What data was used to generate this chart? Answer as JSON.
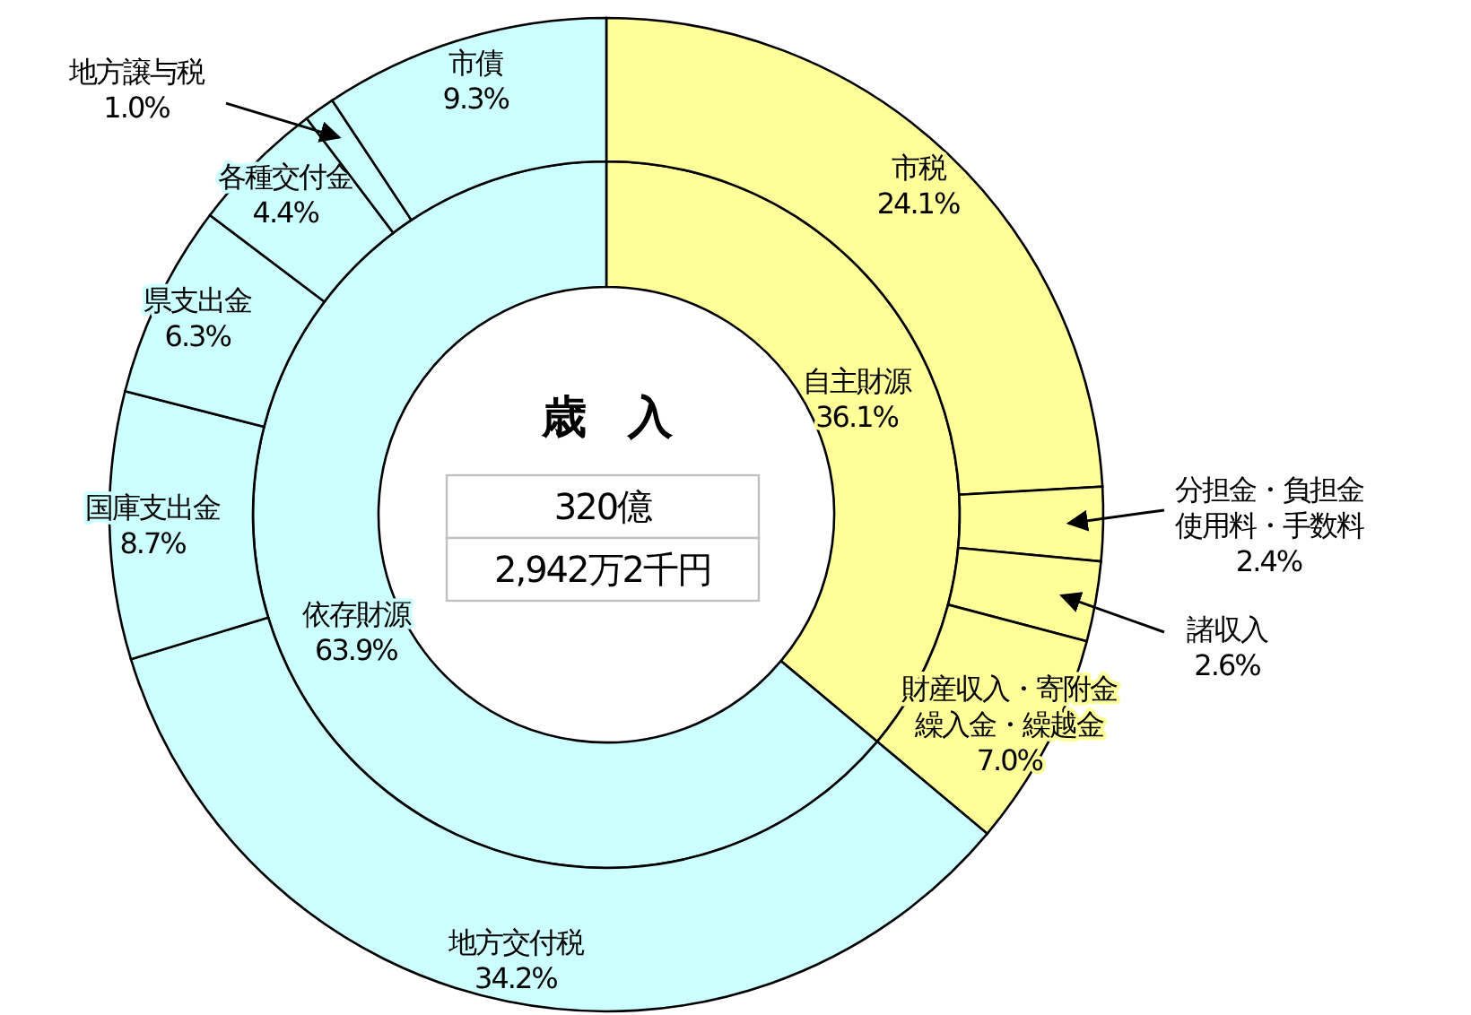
{
  "chart_data": [
    {
      "type": "donut",
      "title": "歳　入",
      "annotations": [
        "320億",
        "2,942万2千円"
      ],
      "categories": [
        "自主財源",
        "依存財源"
      ],
      "values": [
        36.1,
        63.9
      ],
      "value_labels": [
        "36.1%",
        "63.9%"
      ],
      "colors": [
        "#ffff99",
        "#ccffff"
      ]
    },
    {
      "type": "donut",
      "categories": [
        "市税",
        "分担金・負担金使用料・手数料",
        "諸収入",
        "財産収入・寄附金繰入金・繰越金",
        "地方交付税",
        "国庫支出金",
        "県支出金",
        "各種交付金",
        "地方譲与税",
        "市債"
      ],
      "values": [
        24.1,
        2.4,
        2.6,
        7.0,
        34.2,
        8.7,
        6.3,
        4.4,
        1.0,
        9.3
      ],
      "value_labels": [
        "24.1%",
        "2.4%",
        "2.6%",
        "7.0%",
        "34.2%",
        "8.7%",
        "6.3%",
        "4.4%",
        "1.0%",
        "9.3%"
      ],
      "colors": [
        "#ffff99",
        "#ffff99",
        "#ffff99",
        "#ffff99",
        "#ccffff",
        "#ccffff",
        "#ccffff",
        "#ccffff",
        "#ccffff",
        "#ccffff"
      ]
    }
  ]
}
